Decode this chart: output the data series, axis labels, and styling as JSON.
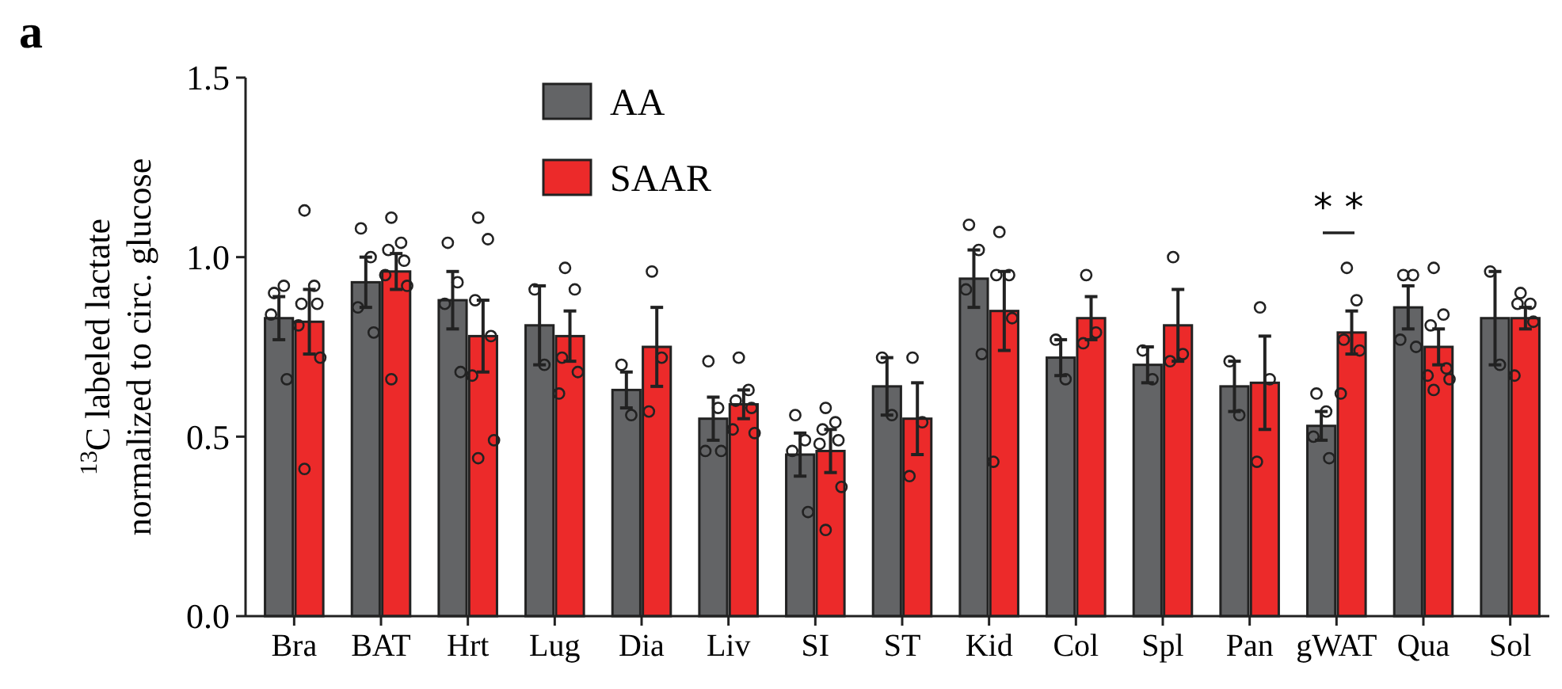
{
  "chart_data": {
    "type": "bar",
    "ylabel": "$^{13}$C labeled lactate\nnormalized to circ. glucose",
    "categories": [
      "Bra",
      "BAT",
      "Hrt",
      "Lug",
      "Dia",
      "Liv",
      "SI",
      "ST",
      "Kid",
      "Col",
      "Spl",
      "Pan",
      "gWAT",
      "Qua",
      "Sol"
    ],
    "series": [
      {
        "name": "AA",
        "color": "#636466",
        "values": [
          0.83,
          0.93,
          0.88,
          0.81,
          0.63,
          0.55,
          0.45,
          0.64,
          0.94,
          0.72,
          0.7,
          0.64,
          0.53,
          0.86,
          0.83
        ],
        "errors": [
          0.06,
          0.07,
          0.08,
          0.11,
          0.05,
          0.06,
          0.06,
          0.08,
          0.08,
          0.05,
          0.05,
          0.07,
          0.04,
          0.06,
          0.13
        ]
      },
      {
        "name": "SAAR",
        "color": "#ec2a2a",
        "values": [
          0.82,
          0.96,
          0.78,
          0.78,
          0.75,
          0.59,
          0.46,
          0.55,
          0.85,
          0.83,
          0.81,
          0.65,
          0.79,
          0.75,
          0.83
        ],
        "errors": [
          0.09,
          0.05,
          0.1,
          0.07,
          0.11,
          0.04,
          0.06,
          0.1,
          0.11,
          0.06,
          0.1,
          0.13,
          0.06,
          0.05,
          0.03
        ]
      },
      {
        "type": "scatter",
        "color": "#222222",
        "x": [
          "Bra",
          "Bra",
          "Bra",
          "Bra",
          "BAT",
          "BAT",
          "BAT",
          "BAT",
          "Hrt",
          "Hrt",
          "Hrt",
          "Hrt",
          "Lug",
          "Lug",
          "Dia",
          "Dia",
          "Liv",
          "Liv",
          "Liv",
          "Liv",
          "SI",
          "SI",
          "SI",
          "SI",
          "ST",
          "ST",
          "Kid",
          "Kid",
          "Kid",
          "Kid",
          "Col",
          "Col",
          "Spl",
          "Spl",
          "Pan",
          "Pan",
          "gWAT",
          "gWAT",
          "gWAT",
          "gWAT",
          "Qua",
          "Qua",
          "Qua",
          "Qua",
          "Sol",
          "Sol"
        ],
        "values": [
          0.9,
          0.92,
          0.84,
          0.66,
          1.08,
          1.0,
          0.86,
          0.79,
          1.04,
          0.93,
          0.87,
          0.68,
          0.91,
          0.7,
          0.7,
          0.56,
          0.71,
          0.58,
          0.46,
          0.46,
          0.56,
          0.49,
          0.46,
          0.29,
          0.72,
          0.56,
          1.09,
          1.02,
          0.91,
          0.73,
          0.77,
          0.66,
          0.74,
          0.66,
          0.71,
          0.56,
          0.62,
          0.57,
          0.5,
          0.44,
          0.95,
          0.95,
          0.77,
          0.75,
          0.96,
          0.7
        ]
      },
      {
        "type": "scatter",
        "color": "#222222",
        "x": [
          "Bra",
          "Bra",
          "Bra",
          "Bra",
          "Bra",
          "Bra",
          "Bra",
          "BAT",
          "BAT",
          "BAT",
          "BAT",
          "BAT",
          "BAT",
          "BAT",
          "Hrt",
          "Hrt",
          "Hrt",
          "Hrt",
          "Hrt",
          "Hrt",
          "Hrt",
          "Lug",
          "Lug",
          "Lug",
          "Lug",
          "Lug",
          "Dia",
          "Dia",
          "Dia",
          "Liv",
          "Liv",
          "Liv",
          "Liv",
          "Liv",
          "Liv",
          "SI",
          "SI",
          "SI",
          "SI",
          "SI",
          "SI",
          "SI",
          "ST",
          "ST",
          "ST",
          "Kid",
          "Kid",
          "Kid",
          "Kid",
          "Kid",
          "Col",
          "Col",
          "Col",
          "Spl",
          "Spl",
          "Spl",
          "Pan",
          "Pan",
          "Pan",
          "gWAT",
          "gWAT",
          "gWAT",
          "gWAT",
          "gWAT",
          "Qua",
          "Qua",
          "Qua",
          "Qua",
          "Qua",
          "Qua",
          "Qua",
          "Sol",
          "Sol",
          "Sol",
          "Sol",
          "Sol"
        ],
        "values": [
          1.13,
          0.92,
          0.87,
          0.87,
          0.81,
          0.72,
          0.41,
          1.11,
          1.04,
          1.02,
          0.99,
          0.95,
          0.92,
          0.66,
          1.11,
          1.05,
          0.88,
          0.78,
          0.67,
          0.49,
          0.44,
          0.97,
          0.91,
          0.72,
          0.68,
          0.62,
          0.96,
          0.72,
          0.57,
          0.72,
          0.63,
          0.6,
          0.58,
          0.52,
          0.51,
          0.58,
          0.54,
          0.52,
          0.49,
          0.48,
          0.36,
          0.24,
          0.72,
          0.54,
          0.39,
          1.07,
          0.95,
          0.95,
          0.83,
          0.43,
          0.95,
          0.79,
          0.76,
          1.0,
          0.73,
          0.71,
          0.86,
          0.66,
          0.43,
          0.97,
          0.88,
          0.77,
          0.74,
          0.62,
          0.97,
          0.84,
          0.81,
          0.69,
          0.67,
          0.66,
          0.63,
          0.9,
          0.87,
          0.87,
          0.82,
          0.67
        ]
      }
    ],
    "ylim": [
      0,
      1.5
    ],
    "yticks": [
      {
        "value": 0,
        "label": "0.0"
      },
      0.5,
      {
        "value": 1,
        "label": "1.0"
      },
      1.5
    ],
    "legend": "top",
    "marker": "circle",
    "annotations": [
      "a",
      "* *"
    ]
  }
}
